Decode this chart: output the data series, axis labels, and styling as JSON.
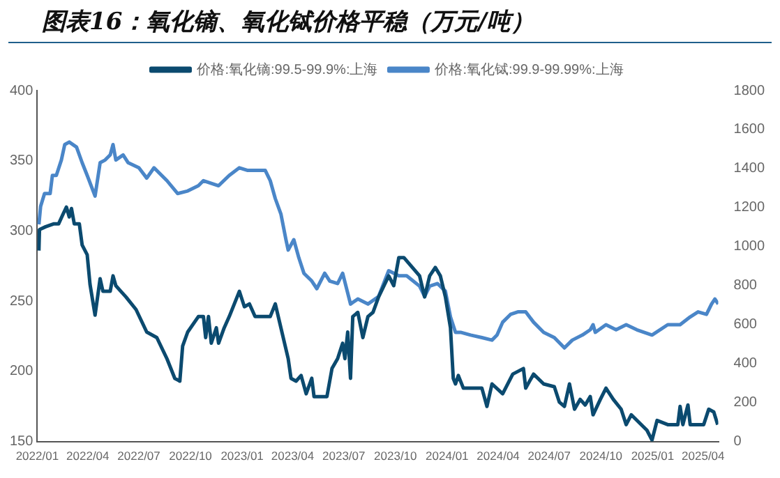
{
  "chart_data": {
    "type": "line",
    "title": "图表16：氧化镝、氧化铽价格平稳（万元/吨）",
    "xlim": [
      "2022-01-01",
      "2025-04-28"
    ],
    "xticks": [
      {
        "value": "2022-01",
        "label": "2022/01"
      },
      {
        "value": "2022-04",
        "label": "2022/04"
      },
      {
        "value": "2022-07",
        "label": "2022/07"
      },
      {
        "value": "2022-10",
        "label": "2022/10"
      },
      {
        "value": "2023-01",
        "label": "2023/01"
      },
      {
        "value": "2023-04",
        "label": "2023/04"
      },
      {
        "value": "2023-07",
        "label": "2023/07"
      },
      {
        "value": "2023-10",
        "label": "2023/10"
      },
      {
        "value": "2024-01",
        "label": "2024/01"
      },
      {
        "value": "2024-04",
        "label": "2024/04"
      },
      {
        "value": "2024-07",
        "label": "2024/07"
      },
      {
        "value": "2024-10",
        "label": "2024/10"
      },
      {
        "value": "2025-01",
        "label": "2025/01"
      },
      {
        "value": "2025-04",
        "label": "2025/04"
      }
    ],
    "ylim": [
      150,
      400
    ],
    "yticks": [
      150,
      200,
      250,
      300,
      350,
      400
    ],
    "y2lim": [
      0,
      1800
    ],
    "y2ticks": [
      0,
      200,
      400,
      600,
      800,
      1000,
      1200,
      1400,
      1600,
      1800
    ],
    "legend": "top",
    "marker": "none",
    "series": [
      {
        "name": "价格:氧化镝:99.5-99.9%:上海",
        "color": "#0b4a6f",
        "x": [
          "2022-01-04",
          "2022-01-05",
          "2022-01-16",
          "2022-01-30",
          "2022-02-08",
          "2022-02-16",
          "2022-02-22",
          "2022-02-27",
          "2022-03-03",
          "2022-03-08",
          "2022-03-17",
          "2022-03-22",
          "2022-03-31",
          "2022-04-05",
          "2022-04-14",
          "2022-04-23",
          "2022-04-28",
          "2022-05-11",
          "2022-05-16",
          "2022-05-21",
          "2022-05-30",
          "2022-06-08",
          "2022-06-26",
          "2022-07-15",
          "2022-08-02",
          "2022-08-20",
          "2022-09-03",
          "2022-09-12",
          "2022-09-17",
          "2022-09-26",
          "2022-10-15",
          "2022-10-24",
          "2022-10-28",
          "2022-11-02",
          "2022-11-07",
          "2022-11-16",
          "2022-11-20",
          "2022-11-30",
          "2022-12-09",
          "2022-12-27",
          "2023-01-05",
          "2023-01-14",
          "2023-01-24",
          "2023-02-20",
          "2023-03-01",
          "2023-03-11",
          "2023-03-24",
          "2023-03-29",
          "2023-04-07",
          "2023-04-16",
          "2023-04-25",
          "2023-05-05",
          "2023-05-09",
          "2023-06-01",
          "2023-06-10",
          "2023-06-20",
          "2023-06-29",
          "2023-07-03",
          "2023-07-08",
          "2023-07-13",
          "2023-07-17",
          "2023-07-26",
          "2023-08-04",
          "2023-08-13",
          "2023-08-22",
          "2023-09-01",
          "2023-09-19",
          "2023-09-28",
          "2023-10-07",
          "2023-10-16",
          "2023-11-13",
          "2023-11-22",
          "2023-12-01",
          "2023-12-11",
          "2023-12-20",
          "2023-12-29",
          "2024-01-07",
          "2024-01-12",
          "2024-01-16",
          "2024-01-21",
          "2024-01-30",
          "2024-03-03",
          "2024-03-12",
          "2024-03-21",
          "2024-04-09",
          "2024-04-27",
          "2024-05-16",
          "2024-05-20",
          "2024-06-03",
          "2024-06-21",
          "2024-07-10",
          "2024-07-19",
          "2024-07-28",
          "2024-08-06",
          "2024-08-15",
          "2024-08-25",
          "2024-09-03",
          "2024-09-12",
          "2024-09-17",
          "2024-09-30",
          "2024-10-10",
          "2024-10-23",
          "2024-11-06",
          "2024-11-15",
          "2024-11-24",
          "2024-12-22",
          "2024-12-31",
          "2025-01-09",
          "2025-01-28",
          "2025-02-15",
          "2025-02-19",
          "2025-02-24",
          "2025-03-05",
          "2025-03-09",
          "2025-03-23",
          "2025-04-02",
          "2025-04-11",
          "2025-04-20",
          "2025-04-27"
        ],
        "values": [
          286,
          301,
          303,
          305,
          305,
          312,
          317,
          310,
          316,
          305,
          305,
          290,
          283,
          262,
          240,
          266,
          257,
          257,
          268,
          261,
          257,
          253,
          244,
          228,
          224,
          209,
          195,
          193,
          218,
          228,
          239,
          239,
          224,
          239,
          220,
          231,
          220,
          231,
          239,
          257,
          246,
          248,
          239,
          239,
          248,
          231,
          209,
          195,
          193,
          197,
          184,
          195,
          182,
          182,
          202,
          209,
          220,
          209,
          228,
          195,
          239,
          242,
          224,
          239,
          242,
          253,
          268,
          261,
          281,
          281,
          268,
          253,
          268,
          274,
          268,
          253,
          231,
          195,
          191,
          197,
          188,
          188,
          175,
          191,
          184,
          198,
          202,
          188,
          198,
          191,
          189,
          178,
          175,
          191,
          173,
          180,
          176,
          182,
          169,
          180,
          188,
          180,
          173,
          162,
          169,
          158,
          151,
          165,
          162,
          162,
          175,
          162,
          176,
          162,
          162,
          162,
          173,
          171,
          162
        ]
      },
      {
        "name": "价格:氧化铽:99.9-99.99%:上海",
        "color": "#4a86c8",
        "axis": "y2",
        "x": [
          "2022-01-04",
          "2022-01-07",
          "2022-01-14",
          "2022-01-24",
          "2022-01-28",
          "2022-02-04",
          "2022-02-13",
          "2022-02-19",
          "2022-02-27",
          "2022-03-12",
          "2022-03-22",
          "2022-03-31",
          "2022-04-14",
          "2022-04-23",
          "2022-05-02",
          "2022-05-11",
          "2022-05-16",
          "2022-05-21",
          "2022-06-03",
          "2022-06-12",
          "2022-07-01",
          "2022-07-15",
          "2022-07-28",
          "2022-08-20",
          "2022-09-08",
          "2022-09-26",
          "2022-10-15",
          "2022-10-24",
          "2022-11-20",
          "2022-12-09",
          "2022-12-27",
          "2023-01-10",
          "2023-02-11",
          "2023-02-20",
          "2023-03-01",
          "2023-03-11",
          "2023-03-20",
          "2023-03-24",
          "2023-04-03",
          "2023-04-12",
          "2023-04-21",
          "2023-05-05",
          "2023-05-14",
          "2023-05-28",
          "2023-06-06",
          "2023-06-20",
          "2023-06-29",
          "2023-07-13",
          "2023-07-26",
          "2023-08-13",
          "2023-09-01",
          "2023-09-10",
          "2023-09-19",
          "2023-10-07",
          "2023-10-21",
          "2023-11-13",
          "2023-11-22",
          "2023-12-01",
          "2023-12-15",
          "2023-12-29",
          "2024-01-07",
          "2024-01-16",
          "2024-01-25",
          "2024-02-12",
          "2024-03-03",
          "2024-03-21",
          "2024-03-30",
          "2024-04-09",
          "2024-04-23",
          "2024-05-06",
          "2024-05-20",
          "2024-06-03",
          "2024-06-21",
          "2024-07-10",
          "2024-07-28",
          "2024-08-11",
          "2024-08-29",
          "2024-09-12",
          "2024-09-17",
          "2024-09-21",
          "2024-10-10",
          "2024-10-28",
          "2024-11-15",
          "2024-12-04",
          "2024-12-31",
          "2025-01-28",
          "2025-02-19",
          "2025-03-09",
          "2025-03-23",
          "2025-04-07",
          "2025-04-16",
          "2025-04-22",
          "2025-04-28"
        ],
        "values": [
          1114,
          1206,
          1272,
          1272,
          1365,
          1365,
          1444,
          1523,
          1536,
          1510,
          1430,
          1365,
          1259,
          1430,
          1444,
          1470,
          1523,
          1444,
          1470,
          1430,
          1404,
          1351,
          1404,
          1338,
          1272,
          1285,
          1312,
          1338,
          1312,
          1365,
          1404,
          1391,
          1391,
          1338,
          1246,
          1167,
          1035,
          982,
          1035,
          942,
          863,
          823,
          784,
          863,
          823,
          810,
          863,
          705,
          731,
          705,
          744,
          810,
          876,
          850,
          850,
          797,
          744,
          797,
          810,
          771,
          639,
          560,
          560,
          546,
          533,
          520,
          546,
          612,
          652,
          665,
          665,
          612,
          560,
          533,
          480,
          520,
          546,
          573,
          599,
          560,
          599,
          573,
          599,
          573,
          546,
          599,
          599,
          639,
          665,
          652,
          705,
          731,
          705
        ]
      }
    ]
  }
}
